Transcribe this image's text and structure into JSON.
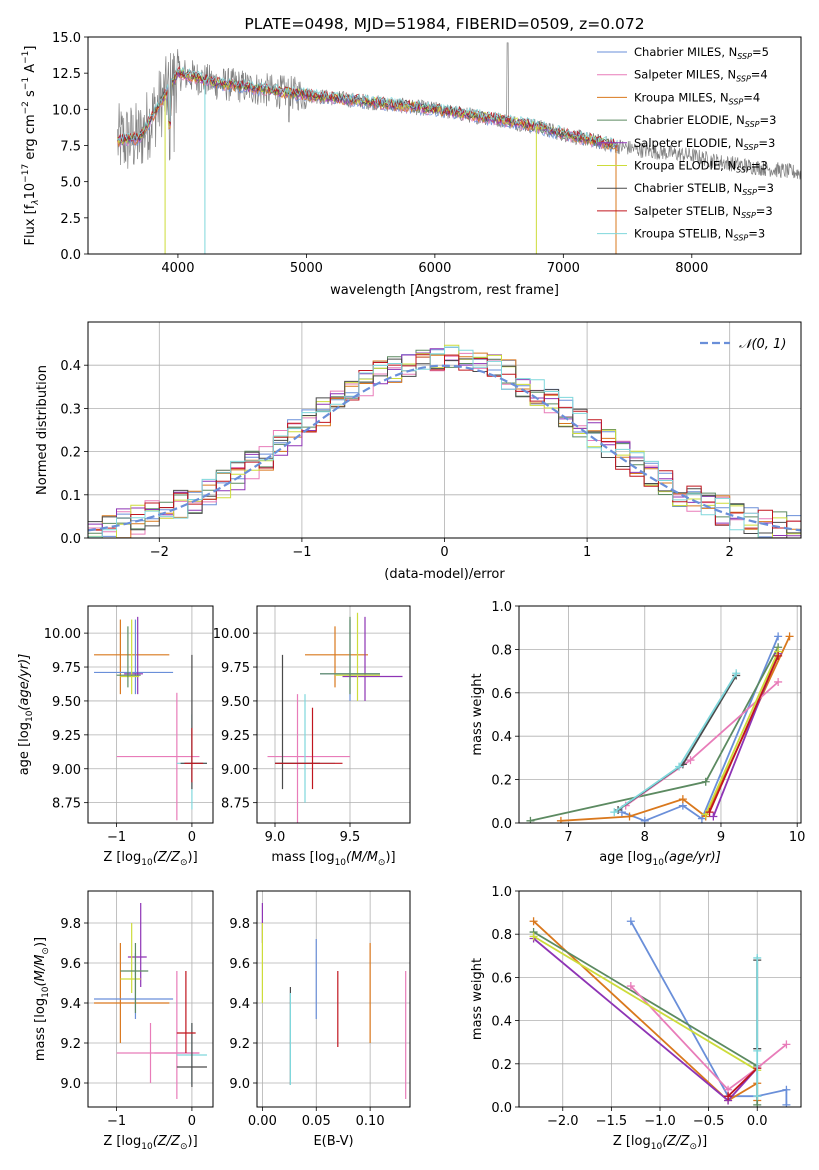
{
  "colors": {
    "blue": "#6a8fd9",
    "pink": "#e87cb9",
    "orange": "#d9781d",
    "green": "#5c8a61",
    "purple": "#8e34b5",
    "lime": "#cddc3a",
    "dark": "#4a4a4a",
    "red": "#c0161f",
    "cyan": "#7fd7dc",
    "data_gray": "#808080"
  },
  "chart_data": [
    {
      "id": "spectrum",
      "type": "line",
      "title": "PLATE=0498, MJD=51984, FIBERID=0509, z=0.072",
      "xlabel": "wavelength [Angstrom, rest frame]",
      "ylabel_main": "Flux [f",
      "ylabel_sub": "λ",
      "ylabel_rest": "10",
      "ylabel_exp": "−17",
      "ylabel_units": " erg cm",
      "ylabel_units_exp": "−2",
      "ylabel_units_tail": " s",
      "ylabel_s_exp": "−1",
      "ylabel_A": " A",
      "ylabel_A_exp": "−1",
      "ylabel_close": "]",
      "xlim": [
        3300,
        8850
      ],
      "ylim": [
        0,
        15
      ],
      "xticks": [
        4000,
        5000,
        6000,
        7000,
        8000
      ],
      "yticks": [
        0.0,
        2.5,
        5.0,
        7.5,
        10.0,
        12.5,
        15.0
      ],
      "ytick_labels": [
        "0.0",
        "2.5",
        "5.0",
        "7.5",
        "10.0",
        "12.5",
        "15.0"
      ],
      "legend": [
        {
          "name": "Chabrier MILES, N",
          "sub": "SSP",
          "tail": "=5",
          "color": "blue"
        },
        {
          "name": "Salpeter MILES, N",
          "sub": "SSP",
          "tail": "=4",
          "color": "pink"
        },
        {
          "name": "Kroupa MILES, N",
          "sub": "SSP",
          "tail": "=4",
          "color": "orange"
        },
        {
          "name": "Chabrier ELODIE, N",
          "sub": "SSP",
          "tail": "=3",
          "color": "green"
        },
        {
          "name": "Salpeter ELODIE, N",
          "sub": "SSP",
          "tail": "=3",
          "color": "purple"
        },
        {
          "name": "Kroupa ELODIE, N",
          "sub": "SSP",
          "tail": "=3",
          "color": "lime"
        },
        {
          "name": "Chabrier STELIB, N",
          "sub": "SSP",
          "tail": "=3",
          "color": "dark"
        },
        {
          "name": "Salpeter STELIB, N",
          "sub": "SSP",
          "tail": "=3",
          "color": "red"
        },
        {
          "name": "Kroupa STELIB, N",
          "sub": "SSP",
          "tail": "=3",
          "color": "cyan"
        }
      ],
      "legend_position": "upper right",
      "continuum": {
        "x": [
          3500,
          3700,
          3900,
          4000,
          4100,
          4300,
          4500,
          4700,
          5000,
          5200,
          5500,
          5800,
          6000,
          6200,
          6500,
          6800,
          7000,
          7200,
          7400,
          7600,
          7800,
          8000,
          8200,
          8500,
          8850
        ],
        "y": [
          7.8,
          8.0,
          11.0,
          12.5,
          12.3,
          11.8,
          11.6,
          11.3,
          11.0,
          10.8,
          10.5,
          10.2,
          10.0,
          9.7,
          9.3,
          8.8,
          8.3,
          7.9,
          7.5,
          7.2,
          7.0,
          6.8,
          6.4,
          6.0,
          5.6
        ]
      },
      "data_range": [
        3530,
        8850
      ],
      "model_range": [
        3530,
        7420
      ]
    },
    {
      "id": "residuals",
      "type": "histogram",
      "xlabel": "(data-model)/error",
      "ylabel": "Normed distribution",
      "xlim": [
        -2.5,
        2.5
      ],
      "ylim": [
        0,
        0.5
      ],
      "xticks": [
        -2,
        -1,
        0,
        1,
        2
      ],
      "xtick_labels": [
        "−2",
        "−1",
        "0",
        "1",
        "2"
      ],
      "yticks": [
        0.0,
        0.1,
        0.2,
        0.3,
        0.4
      ],
      "ytick_labels": [
        "0.0",
        "0.1",
        "0.2",
        "0.3",
        "0.4"
      ],
      "legend": [
        "𝒩(0, 1)"
      ],
      "legend_position": "upper right",
      "grid": true
    },
    {
      "id": "age_vs_Z",
      "type": "errorbar",
      "xlabel": "Z [log",
      "xlabel_sub": "10",
      "xlabel_tail": "(Z/Z",
      "xlabel_sun_sub": "⊙",
      "xlabel_close": ")]",
      "ylabel": "age  [log",
      "ylabel_sub": "10",
      "ylabel_tail": "(age/yr)]",
      "xlim": [
        -1.38,
        0.28
      ],
      "ylim": [
        8.6,
        10.2
      ],
      "xticks": [
        -1,
        0
      ],
      "xtick_labels": [
        "−1",
        "0"
      ],
      "yticks": [
        8.75,
        9.0,
        9.25,
        9.5,
        9.75,
        10.0
      ],
      "ytick_labels": [
        "8.75",
        "9.00",
        "9.25",
        "9.50",
        "9.75",
        "10.00"
      ],
      "grid": true
    },
    {
      "id": "age_vs_mass",
      "type": "errorbar",
      "xlabel": "mass [log",
      "xlabel_sub": "10",
      "xlabel_tail": "(M/M",
      "xlabel_sun_sub": "⊙",
      "xlabel_close": ")]",
      "xlim": [
        8.88,
        9.9
      ],
      "ylim": [
        8.6,
        10.2
      ],
      "xticks": [
        9.0,
        9.5
      ],
      "xtick_labels": [
        "9.0",
        "9.5"
      ],
      "yticks": [
        8.75,
        9.0,
        9.25,
        9.5,
        9.75,
        10.0
      ],
      "ytick_labels": [
        "8.75",
        "9.00",
        "9.25",
        "9.50",
        "9.75",
        "10.00"
      ],
      "grid": true
    },
    {
      "id": "mw_vs_age",
      "type": "line",
      "xlabel": "age  [log",
      "xlabel_sub": "10",
      "xlabel_tail": "(age/yr)]",
      "ylabel": "mass weight",
      "xlim": [
        6.35,
        10.05
      ],
      "ylim": [
        0,
        1
      ],
      "xticks": [
        7,
        8,
        9,
        10
      ],
      "xtick_labels": [
        "7",
        "8",
        "9",
        "10"
      ],
      "yticks": [
        0.0,
        0.2,
        0.4,
        0.6,
        0.8,
        1.0
      ],
      "ytick_labels": [
        "0.0",
        "0.2",
        "0.4",
        "0.6",
        "0.8",
        "1.0"
      ],
      "grid": true,
      "series": [
        {
          "color": "blue",
          "x": [
            7.7,
            8.0,
            8.5,
            8.75,
            9.75
          ],
          "y": [
            0.05,
            0.01,
            0.08,
            0.02,
            0.86
          ]
        },
        {
          "color": "orange",
          "x": [
            6.9,
            7.8,
            8.5,
            8.8,
            9.9
          ],
          "y": [
            0.01,
            0.03,
            0.11,
            0.03,
            0.86
          ]
        },
        {
          "color": "green",
          "x": [
            6.5,
            8.8,
            9.75
          ],
          "y": [
            0.01,
            0.19,
            0.81
          ]
        },
        {
          "color": "purple",
          "x": [
            8.9,
            9.75
          ],
          "y": [
            0.03,
            0.78
          ]
        },
        {
          "color": "pink",
          "x": [
            7.75,
            8.6,
            9.75
          ],
          "y": [
            0.08,
            0.29,
            0.65
          ]
        },
        {
          "color": "lime",
          "x": [
            8.8,
            9.75
          ],
          "y": [
            0.04,
            0.79
          ]
        },
        {
          "color": "dark",
          "x": [
            7.65,
            8.5,
            9.2
          ],
          "y": [
            0.06,
            0.27,
            0.68
          ]
        },
        {
          "color": "red",
          "x": [
            8.85,
            9.75
          ],
          "y": [
            0.05,
            0.77
          ]
        },
        {
          "color": "cyan",
          "x": [
            7.6,
            8.45,
            9.2
          ],
          "y": [
            0.05,
            0.26,
            0.69
          ]
        }
      ]
    },
    {
      "id": "mass_vs_Z",
      "type": "errorbar",
      "xlabel": "Z [log",
      "xlabel_sub": "10",
      "xlabel_tail": "(Z/Z",
      "xlabel_sun_sub": "⊙",
      "xlabel_close": ")]",
      "ylabel": "mass [log",
      "ylabel_sub": "10",
      "ylabel_tail": "(M/M",
      "ylabel_sun_sub": "⊙",
      "ylabel_close": ")]",
      "xlim": [
        -1.38,
        0.28
      ],
      "ylim": [
        8.88,
        9.96
      ],
      "xticks": [
        -1,
        0
      ],
      "xtick_labels": [
        "−1",
        "0"
      ],
      "yticks": [
        9.0,
        9.2,
        9.4,
        9.6,
        9.8
      ],
      "ytick_labels": [
        "9.0",
        "9.2",
        "9.4",
        "9.6",
        "9.8"
      ],
      "grid": true
    },
    {
      "id": "mass_vs_EBV",
      "type": "errorbar",
      "xlabel": "E(B-V)",
      "xlim": [
        -0.005,
        0.137
      ],
      "ylim": [
        8.88,
        9.96
      ],
      "xticks": [
        0.0,
        0.05,
        0.1
      ],
      "xtick_labels": [
        "0.00",
        "0.05",
        "0.10"
      ],
      "yticks": [
        9.0,
        9.2,
        9.4,
        9.6,
        9.8
      ],
      "ytick_labels": [
        "9.0",
        "9.2",
        "9.4",
        "9.6",
        "9.8"
      ],
      "grid": true
    },
    {
      "id": "mw_vs_Z",
      "type": "line",
      "xlabel": "Z [log",
      "xlabel_sub": "10",
      "xlabel_tail": "(Z/Z",
      "xlabel_sun_sub": "⊙",
      "xlabel_close": ")]",
      "ylabel": "mass weight",
      "xlim": [
        -2.45,
        0.45
      ],
      "ylim": [
        0,
        1
      ],
      "xticks": [
        -2.0,
        -1.5,
        -1.0,
        -0.5,
        0.0
      ],
      "xtick_labels": [
        "−2.0",
        "−1.5",
        "−1.0",
        "−0.5",
        "0.0"
      ],
      "yticks": [
        0.0,
        0.2,
        0.4,
        0.6,
        0.8,
        1.0
      ],
      "ytick_labels": [
        "0.0",
        "0.2",
        "0.4",
        "0.6",
        "0.8",
        "1.0"
      ],
      "grid": true,
      "series": [
        {
          "color": "blue",
          "x": [
            -1.3,
            -0.3,
            0.0,
            0.3,
            0.3
          ],
          "y": [
            0.86,
            0.05,
            0.05,
            0.08,
            0.01
          ]
        },
        {
          "color": "orange",
          "x": [
            -2.3,
            -0.3,
            0.0,
            0.0
          ],
          "y": [
            0.86,
            0.03,
            0.11,
            0.03
          ]
        },
        {
          "color": "green",
          "x": [
            -2.3,
            0.0,
            0.0
          ],
          "y": [
            0.81,
            0.19,
            0.01
          ]
        },
        {
          "color": "purple",
          "x": [
            -2.3,
            -0.3,
            0.0
          ],
          "y": [
            0.78,
            0.03,
            0.18
          ]
        },
        {
          "color": "pink",
          "x": [
            -1.3,
            -0.3,
            0.0,
            0.3
          ],
          "y": [
            0.56,
            0.08,
            0.18,
            0.29
          ]
        },
        {
          "color": "lime",
          "x": [
            -2.3,
            0.0
          ],
          "y": [
            0.79,
            0.17
          ]
        },
        {
          "color": "dark",
          "x": [
            0.0,
            0.0
          ],
          "y": [
            0.68,
            0.27
          ]
        },
        {
          "color": "red",
          "x": [
            -0.3,
            0.0
          ],
          "y": [
            0.05,
            0.18
          ]
        },
        {
          "color": "cyan",
          "x": [
            0.0,
            0.0,
            0.0
          ],
          "y": [
            0.69,
            0.26,
            0.05
          ]
        }
      ]
    }
  ]
}
